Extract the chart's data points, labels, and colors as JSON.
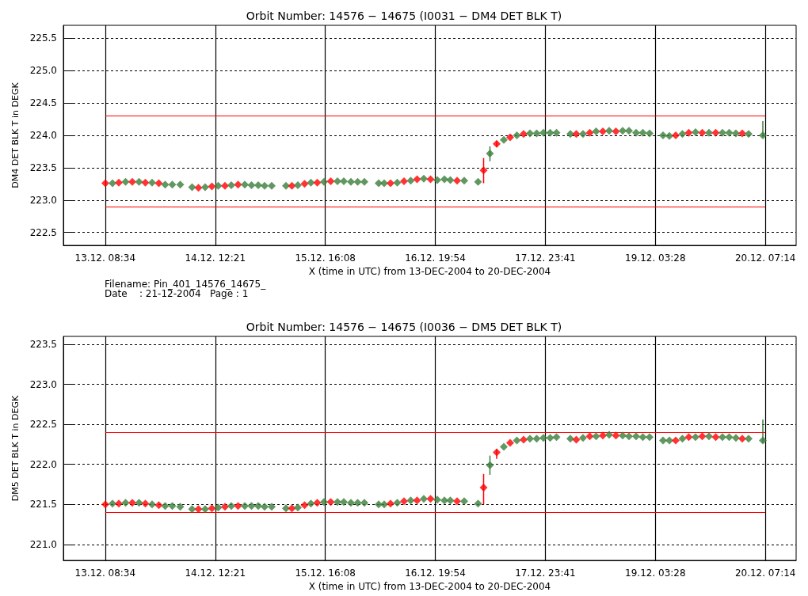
{
  "chart_data": [
    {
      "type": "scatter",
      "title": "Orbit Number: 14576 − 14675 (I0031 − DM4 DET BLK T)",
      "xlabel": "X (time in UTC) from 13-DEC-2004 to 20-DEC-2004",
      "ylabel": "DM4 DET BLK T in DEGK",
      "marker": "diamond",
      "grid": true,
      "xlim": [
        "2004-12-12T22:00",
        "2004-12-20T15:00"
      ],
      "xticks": [
        {
          "value": "2004-12-13T08:34",
          "label": "13.12. 08:34"
        },
        {
          "value": "2004-12-14T12:21",
          "label": "14.12. 12:21"
        },
        {
          "value": "2004-12-15T16:08",
          "label": "15.12. 16:08"
        },
        {
          "value": "2004-12-16T19:54",
          "label": "16.12. 19:54"
        },
        {
          "value": "2004-12-17T23:41",
          "label": "17.12. 23:41"
        },
        {
          "value": "2004-12-19T03:28",
          "label": "19.12. 03:28"
        },
        {
          "value": "2004-12-20T07:14",
          "label": "20.12. 07:14"
        }
      ],
      "ylim": [
        222.3,
        225.7
      ],
      "yticks": [
        {
          "value": 222.5,
          "label": "222.5"
        },
        {
          "value": 223,
          "label": "223.0"
        },
        {
          "value": 223.5,
          "label": "223.5"
        },
        {
          "value": 224,
          "label": "224.0"
        },
        {
          "value": 224.5,
          "label": "224.5"
        },
        {
          "value": 225,
          "label": "225.0"
        },
        {
          "value": 225.5,
          "label": "225.5"
        }
      ],
      "ref_lines": [
        {
          "axis": "y",
          "value": 224.3,
          "color": "#ff0000"
        },
        {
          "axis": "y",
          "value": 222.9,
          "color": "#ff0000"
        }
      ],
      "annotations": [
        "Filename: Pin_401_14576_14675_",
        "Date    : 21-12-2004   Page : 1"
      ],
      "x": [
        "2004-12-13T08:36",
        "2004-12-13T10:24",
        "2004-12-13T12:00",
        "2004-12-13T13:42",
        "2004-12-13T15:24",
        "2004-12-13T17:06",
        "2004-12-13T18:42",
        "2004-12-13T20:24",
        "2004-12-13T22:06",
        "2004-12-13T23:42",
        "2004-12-14T01:30",
        "2004-12-14T03:30",
        "2004-12-14T06:30",
        "2004-12-14T08:06",
        "2004-12-14T09:48",
        "2004-12-14T11:30",
        "2004-12-14T13:06",
        "2004-12-14T14:48",
        "2004-12-14T16:24",
        "2004-12-14T18:06",
        "2004-12-14T19:48",
        "2004-12-14T21:30",
        "2004-12-14T23:12",
        "2004-12-15T00:48",
        "2004-12-15T02:36",
        "2004-12-15T06:12",
        "2004-12-15T07:42",
        "2004-12-15T09:12",
        "2004-12-15T10:54",
        "2004-12-15T12:30",
        "2004-12-15T14:06",
        "2004-12-15T15:48",
        "2004-12-15T17:30",
        "2004-12-15T19:12",
        "2004-12-15T20:48",
        "2004-12-15T22:36",
        "2004-12-16T00:18",
        "2004-12-16T02:00",
        "2004-12-16T05:36",
        "2004-12-16T07:00",
        "2004-12-16T08:36",
        "2004-12-16T10:18",
        "2004-12-16T12:00",
        "2004-12-16T13:42",
        "2004-12-16T15:18",
        "2004-12-16T17:00",
        "2004-12-16T18:42",
        "2004-12-16T20:24",
        "2004-12-16T22:12",
        "2004-12-16T23:42",
        "2004-12-17T01:24",
        "2004-12-17T03:12",
        "2004-12-17T06:42",
        "2004-12-17T08:06",
        "2004-12-17T09:42",
        "2004-12-17T11:24",
        "2004-12-17T13:12",
        "2004-12-17T14:48",
        "2004-12-17T16:30",
        "2004-12-17T18:12",
        "2004-12-17T19:48",
        "2004-12-17T21:30",
        "2004-12-17T23:12",
        "2004-12-18T00:54",
        "2004-12-18T02:30",
        "2004-12-18T06:00",
        "2004-12-18T07:30",
        "2004-12-18T09:12",
        "2004-12-18T10:54",
        "2004-12-18T12:30",
        "2004-12-18T14:12",
        "2004-12-18T15:48",
        "2004-12-18T17:30",
        "2004-12-18T19:12",
        "2004-12-18T20:48",
        "2004-12-18T22:36",
        "2004-12-19T00:18",
        "2004-12-19T02:00",
        "2004-12-19T05:24",
        "2004-12-19T07:00",
        "2004-12-19T08:36",
        "2004-12-19T10:18",
        "2004-12-19T11:54",
        "2004-12-19T13:36",
        "2004-12-19T15:18",
        "2004-12-19T17:00",
        "2004-12-19T18:42",
        "2004-12-19T20:24",
        "2004-12-19T22:06",
        "2004-12-19T23:48",
        "2004-12-20T01:24",
        "2004-12-20T03:00",
        "2004-12-20T06:36"
      ],
      "series": [
        {
          "values": [
            223.26,
            223.26,
            223.27,
            223.28,
            223.28,
            223.28,
            223.27,
            223.27,
            223.26,
            223.24,
            223.24,
            223.24,
            223.2,
            223.19,
            223.2,
            223.21,
            223.22,
            223.22,
            223.23,
            223.24,
            223.24,
            223.23,
            223.23,
            223.22,
            223.22,
            223.22,
            223.22,
            223.23,
            223.25,
            223.27,
            223.27,
            223.28,
            223.29,
            223.29,
            223.29,
            223.28,
            223.28,
            223.28,
            223.26,
            223.26,
            223.26,
            223.27,
            223.29,
            223.3,
            223.32,
            223.33,
            223.32,
            223.31,
            223.32,
            223.31,
            223.3,
            223.3,
            223.28,
            223.46,
            223.72,
            223.87,
            223.93,
            223.97,
            224.0,
            224.02,
            224.03,
            224.03,
            224.04,
            224.04,
            224.04,
            224.02,
            224.02,
            224.02,
            224.04,
            224.06,
            224.06,
            224.07,
            224.06,
            224.07,
            224.07,
            224.04,
            224.04,
            224.03,
            224.0,
            223.99,
            224.0,
            224.02,
            224.04,
            224.05,
            224.04,
            224.04,
            224.04,
            224.04,
            224.04,
            224.03,
            224.03,
            224.02,
            224.0
          ],
          "errors": [
            null,
            null,
            null,
            null,
            null,
            null,
            null,
            null,
            null,
            null,
            null,
            null,
            null,
            null,
            null,
            null,
            null,
            null,
            null,
            null,
            null,
            null,
            null,
            null,
            null,
            null,
            null,
            null,
            null,
            null,
            null,
            null,
            null,
            null,
            null,
            null,
            null,
            null,
            null,
            null,
            null,
            null,
            null,
            null,
            null,
            null,
            null,
            null,
            null,
            null,
            null,
            null,
            null,
            [
              223.26,
              223.65
            ],
            [
              223.6,
              223.83
            ],
            [
              223.82,
              223.91
            ],
            null,
            null,
            null,
            null,
            null,
            null,
            null,
            null,
            null,
            null,
            null,
            null,
            null,
            null,
            null,
            null,
            null,
            null,
            null,
            null,
            null,
            null,
            null,
            null,
            null,
            null,
            null,
            null,
            null,
            null,
            null,
            null,
            null,
            null,
            null,
            null,
            [
              223.98,
              224.22
            ]
          ],
          "colors": [
            "#ff0000",
            "#3a7d3a",
            "#ff0000",
            "#3a7d3a",
            "#ff0000",
            "#3a7d3a",
            "#ff0000",
            "#3a7d3a",
            "#ff0000",
            "#3a7d3a",
            "#3a7d3a",
            "#3a7d3a",
            "#3a7d3a",
            "#ff0000",
            "#3a7d3a",
            "#ff0000",
            "#3a7d3a",
            "#ff0000",
            "#3a7d3a",
            "#ff0000",
            "#3a7d3a",
            "#3a7d3a",
            "#3a7d3a",
            "#3a7d3a",
            "#3a7d3a",
            "#3a7d3a",
            "#ff0000",
            "#3a7d3a",
            "#ff0000",
            "#3a7d3a",
            "#ff0000",
            "#3a7d3a",
            "#ff0000",
            "#3a7d3a",
            "#3a7d3a",
            "#3a7d3a",
            "#3a7d3a",
            "#3a7d3a",
            "#3a7d3a",
            "#3a7d3a",
            "#ff0000",
            "#3a7d3a",
            "#ff0000",
            "#3a7d3a",
            "#ff0000",
            "#3a7d3a",
            "#ff0000",
            "#3a7d3a",
            "#3a7d3a",
            "#3a7d3a",
            "#ff0000",
            "#3a7d3a",
            "#3a7d3a",
            "#ff0000",
            "#3a7d3a",
            "#ff0000",
            "#3a7d3a",
            "#ff0000",
            "#3a7d3a",
            "#ff0000",
            "#3a7d3a",
            "#3a7d3a",
            "#3a7d3a",
            "#3a7d3a",
            "#3a7d3a",
            "#3a7d3a",
            "#ff0000",
            "#3a7d3a",
            "#ff0000",
            "#3a7d3a",
            "#ff0000",
            "#3a7d3a",
            "#ff0000",
            "#3a7d3a",
            "#3a7d3a",
            "#3a7d3a",
            "#3a7d3a",
            "#3a7d3a",
            "#3a7d3a",
            "#3a7d3a",
            "#ff0000",
            "#3a7d3a",
            "#ff0000",
            "#3a7d3a",
            "#ff0000",
            "#3a7d3a",
            "#ff0000",
            "#3a7d3a",
            "#3a7d3a",
            "#3a7d3a",
            "#ff0000",
            "#3a7d3a",
            "#3a7d3a"
          ]
        }
      ]
    },
    {
      "type": "scatter",
      "title": "Orbit Number: 14576 − 14675 (I0036 − DM5 DET BLK T)",
      "xlabel": "X (time in UTC) from 13-DEC-2004 to 20-DEC-2004",
      "ylabel": "DM5 DET BLK T in DEGK",
      "marker": "diamond",
      "grid": true,
      "xlim": [
        "2004-12-12T22:00",
        "2004-12-20T15:00"
      ],
      "xticks": [
        {
          "value": "2004-12-13T08:34",
          "label": "13.12. 08:34"
        },
        {
          "value": "2004-12-14T12:21",
          "label": "14.12. 12:21"
        },
        {
          "value": "2004-12-15T16:08",
          "label": "15.12. 16:08"
        },
        {
          "value": "2004-12-16T19:54",
          "label": "16.12. 19:54"
        },
        {
          "value": "2004-12-17T23:41",
          "label": "17.12. 23:41"
        },
        {
          "value": "2004-12-19T03:28",
          "label": "19.12. 03:28"
        },
        {
          "value": "2004-12-20T07:14",
          "label": "20.12. 07:14"
        }
      ],
      "ylim": [
        220.8,
        223.6
      ],
      "yticks": [
        {
          "value": 221,
          "label": "221.0"
        },
        {
          "value": 221.5,
          "label": "221.5"
        },
        {
          "value": 222,
          "label": "222.0"
        },
        {
          "value": 222.5,
          "label": "222.5"
        },
        {
          "value": 223,
          "label": "223.0"
        },
        {
          "value": 223.5,
          "label": "223.5"
        }
      ],
      "ref_lines": [
        {
          "axis": "y",
          "value": 222.4,
          "color": "#ff0000"
        },
        {
          "axis": "y",
          "value": 221.4,
          "color": "#ff0000"
        }
      ],
      "x": [
        "2004-12-13T08:36",
        "2004-12-13T10:24",
        "2004-12-13T12:00",
        "2004-12-13T13:42",
        "2004-12-13T15:24",
        "2004-12-13T17:06",
        "2004-12-13T18:42",
        "2004-12-13T20:24",
        "2004-12-13T22:06",
        "2004-12-13T23:42",
        "2004-12-14T01:30",
        "2004-12-14T03:30",
        "2004-12-14T06:30",
        "2004-12-14T08:06",
        "2004-12-14T09:48",
        "2004-12-14T11:30",
        "2004-12-14T13:06",
        "2004-12-14T14:48",
        "2004-12-14T16:24",
        "2004-12-14T18:06",
        "2004-12-14T19:48",
        "2004-12-14T21:30",
        "2004-12-14T23:12",
        "2004-12-15T00:48",
        "2004-12-15T02:36",
        "2004-12-15T06:12",
        "2004-12-15T07:42",
        "2004-12-15T09:12",
        "2004-12-15T10:54",
        "2004-12-15T12:30",
        "2004-12-15T14:06",
        "2004-12-15T15:48",
        "2004-12-15T17:30",
        "2004-12-15T19:12",
        "2004-12-15T20:48",
        "2004-12-15T22:36",
        "2004-12-16T00:18",
        "2004-12-16T02:00",
        "2004-12-16T05:36",
        "2004-12-16T07:00",
        "2004-12-16T08:36",
        "2004-12-16T10:18",
        "2004-12-16T12:00",
        "2004-12-16T13:42",
        "2004-12-16T15:18",
        "2004-12-16T17:00",
        "2004-12-16T18:42",
        "2004-12-16T20:24",
        "2004-12-16T22:12",
        "2004-12-16T23:42",
        "2004-12-17T01:24",
        "2004-12-17T03:12",
        "2004-12-17T06:42",
        "2004-12-17T08:06",
        "2004-12-17T09:42",
        "2004-12-17T11:24",
        "2004-12-17T13:12",
        "2004-12-17T14:48",
        "2004-12-17T16:30",
        "2004-12-17T18:12",
        "2004-12-17T19:48",
        "2004-12-17T21:30",
        "2004-12-17T23:12",
        "2004-12-18T00:54",
        "2004-12-18T02:30",
        "2004-12-18T06:00",
        "2004-12-18T07:30",
        "2004-12-18T09:12",
        "2004-12-18T10:54",
        "2004-12-18T12:30",
        "2004-12-18T14:12",
        "2004-12-18T15:48",
        "2004-12-18T17:30",
        "2004-12-18T19:12",
        "2004-12-18T20:48",
        "2004-12-18T22:36",
        "2004-12-19T00:18",
        "2004-12-19T02:00",
        "2004-12-19T05:24",
        "2004-12-19T07:00",
        "2004-12-19T08:36",
        "2004-12-19T10:18",
        "2004-12-19T11:54",
        "2004-12-19T13:36",
        "2004-12-19T15:18",
        "2004-12-19T17:00",
        "2004-12-19T18:42",
        "2004-12-19T20:24",
        "2004-12-19T22:06",
        "2004-12-19T23:48",
        "2004-12-20T01:24",
        "2004-12-20T03:00",
        "2004-12-20T06:36"
      ],
      "series": [
        {
          "values": [
            221.5,
            221.51,
            221.51,
            221.52,
            221.52,
            221.52,
            221.51,
            221.5,
            221.49,
            221.48,
            221.48,
            221.47,
            221.44,
            221.44,
            221.44,
            221.45,
            221.46,
            221.47,
            221.48,
            221.48,
            221.48,
            221.48,
            221.48,
            221.47,
            221.47,
            221.45,
            221.45,
            221.46,
            221.49,
            221.51,
            221.52,
            221.53,
            221.53,
            221.53,
            221.53,
            221.52,
            221.52,
            221.52,
            221.5,
            221.5,
            221.51,
            221.52,
            221.54,
            221.55,
            221.55,
            221.57,
            221.57,
            221.56,
            221.55,
            221.55,
            221.54,
            221.54,
            221.51,
            221.71,
            221.99,
            222.15,
            222.22,
            222.27,
            222.3,
            222.31,
            222.32,
            222.32,
            222.33,
            222.33,
            222.34,
            222.32,
            222.31,
            222.33,
            222.35,
            222.35,
            222.36,
            222.37,
            222.36,
            222.36,
            222.35,
            222.35,
            222.34,
            222.34,
            222.3,
            222.3,
            222.3,
            222.32,
            222.34,
            222.34,
            222.35,
            222.35,
            222.34,
            222.34,
            222.34,
            222.33,
            222.32,
            222.32,
            222.3
          ],
          "errors": [
            null,
            null,
            null,
            null,
            null,
            null,
            null,
            null,
            null,
            null,
            null,
            null,
            null,
            null,
            null,
            null,
            null,
            null,
            null,
            null,
            null,
            null,
            null,
            null,
            null,
            null,
            null,
            null,
            null,
            null,
            null,
            null,
            null,
            null,
            null,
            null,
            null,
            null,
            null,
            null,
            null,
            null,
            null,
            null,
            null,
            null,
            null,
            null,
            null,
            null,
            null,
            null,
            null,
            [
              221.5,
              221.88
            ],
            [
              221.87,
              222.11
            ],
            [
              222.07,
              222.19
            ],
            null,
            null,
            null,
            null,
            null,
            null,
            null,
            null,
            null,
            null,
            null,
            null,
            null,
            null,
            null,
            null,
            null,
            null,
            null,
            null,
            null,
            null,
            null,
            null,
            null,
            null,
            null,
            null,
            null,
            null,
            null,
            null,
            null,
            null,
            null,
            null,
            [
              222.27,
              222.56
            ]
          ],
          "colors": [
            "#ff0000",
            "#3a7d3a",
            "#ff0000",
            "#3a7d3a",
            "#ff0000",
            "#3a7d3a",
            "#ff0000",
            "#3a7d3a",
            "#ff0000",
            "#3a7d3a",
            "#3a7d3a",
            "#3a7d3a",
            "#3a7d3a",
            "#ff0000",
            "#3a7d3a",
            "#ff0000",
            "#3a7d3a",
            "#ff0000",
            "#3a7d3a",
            "#ff0000",
            "#3a7d3a",
            "#3a7d3a",
            "#3a7d3a",
            "#3a7d3a",
            "#3a7d3a",
            "#3a7d3a",
            "#ff0000",
            "#3a7d3a",
            "#ff0000",
            "#3a7d3a",
            "#ff0000",
            "#3a7d3a",
            "#ff0000",
            "#3a7d3a",
            "#3a7d3a",
            "#3a7d3a",
            "#3a7d3a",
            "#3a7d3a",
            "#3a7d3a",
            "#3a7d3a",
            "#ff0000",
            "#3a7d3a",
            "#ff0000",
            "#3a7d3a",
            "#ff0000",
            "#3a7d3a",
            "#ff0000",
            "#3a7d3a",
            "#3a7d3a",
            "#3a7d3a",
            "#ff0000",
            "#3a7d3a",
            "#3a7d3a",
            "#ff0000",
            "#3a7d3a",
            "#ff0000",
            "#3a7d3a",
            "#ff0000",
            "#3a7d3a",
            "#ff0000",
            "#3a7d3a",
            "#3a7d3a",
            "#3a7d3a",
            "#3a7d3a",
            "#3a7d3a",
            "#3a7d3a",
            "#ff0000",
            "#3a7d3a",
            "#ff0000",
            "#3a7d3a",
            "#ff0000",
            "#3a7d3a",
            "#ff0000",
            "#3a7d3a",
            "#3a7d3a",
            "#3a7d3a",
            "#3a7d3a",
            "#3a7d3a",
            "#3a7d3a",
            "#3a7d3a",
            "#ff0000",
            "#3a7d3a",
            "#ff0000",
            "#3a7d3a",
            "#ff0000",
            "#3a7d3a",
            "#ff0000",
            "#3a7d3a",
            "#3a7d3a",
            "#3a7d3a",
            "#ff0000",
            "#3a7d3a",
            "#3a7d3a"
          ]
        }
      ]
    }
  ]
}
